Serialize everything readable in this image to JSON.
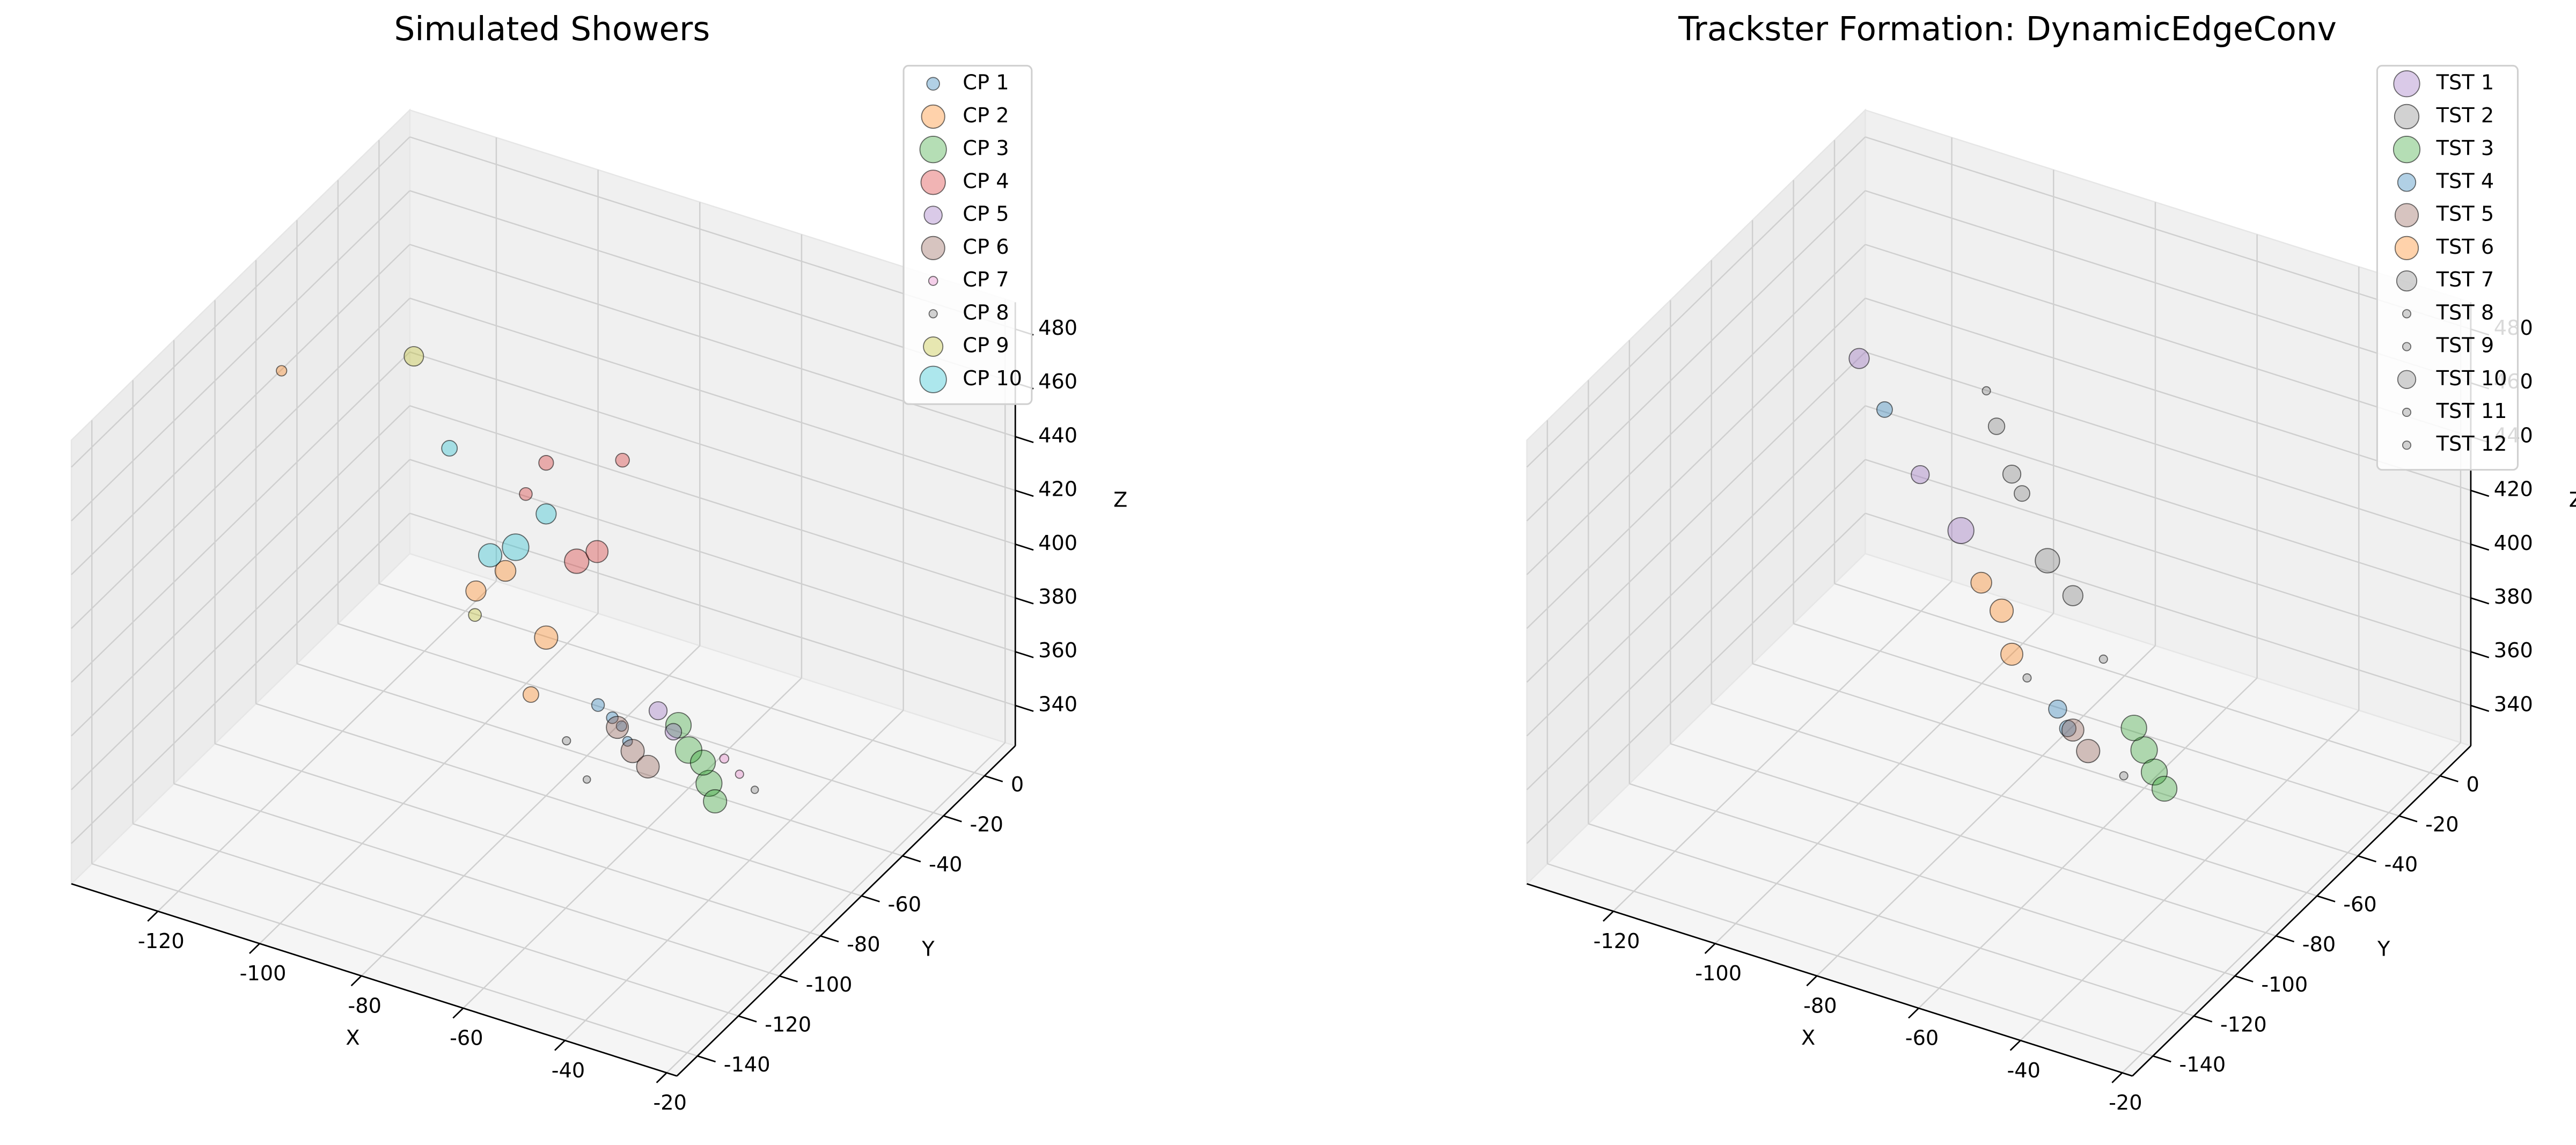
{
  "chart_data": [
    {
      "type": "scatter3d",
      "title": "Simulated Showers",
      "xlabel": "X",
      "ylabel": "Y",
      "zlabel": "Z",
      "xlim": [
        -137,
        -18
      ],
      "ylim": [
        -150,
        15
      ],
      "zlim": [
        325,
        490
      ],
      "xticks": [
        -120,
        -100,
        -80,
        -60,
        -40,
        -20
      ],
      "yticks": [
        0,
        -20,
        -40,
        -60,
        -80,
        -100,
        -120,
        -140
      ],
      "zticks": [
        340,
        360,
        380,
        400,
        420,
        440,
        460,
        480
      ],
      "grid": true,
      "legend": "upper right",
      "alpha": 0.35,
      "series": [
        {
          "name": "CP 1",
          "color": "#1f77b4",
          "x": [
            -71,
            -70,
            -73,
            -68
          ],
          "y": [
            -50,
            -48,
            -52,
            -50
          ],
          "z": [
            352,
            348,
            357,
            345
          ],
          "sizes": [
            50,
            40,
            60,
            35
          ]
        },
        {
          "name": "CP 2",
          "color": "#ff7f0e",
          "x": [
            -84,
            -92,
            -87,
            -136,
            -97
          ],
          "y": [
            -50,
            -50,
            -50,
            -50,
            -52
          ],
          "z": [
            374,
            394,
            351,
            442,
            385
          ],
          "sizes": [
            200,
            160,
            90,
            40,
            150
          ]
        },
        {
          "name": "CP 3",
          "color": "#2ca02c",
          "x": [
            -56,
            -52,
            -58,
            -54,
            -50
          ],
          "y": [
            -50,
            -50,
            -50,
            -48,
            -52
          ],
          "z": [
            349,
            339,
            357,
            344,
            335
          ],
          "sizes": [
            260,
            250,
            240,
            230,
            200
          ]
        },
        {
          "name": "CP 4",
          "color": "#d62728",
          "x": [
            -78,
            -84,
            -69,
            -74,
            -88
          ],
          "y": [
            -50,
            -50,
            -50,
            -50,
            -50
          ],
          "z": [
            406,
            439,
            449,
            412,
            425
          ],
          "sizes": [
            220,
            80,
            70,
            180,
            60
          ]
        },
        {
          "name": "CP 5",
          "color": "#9467bd",
          "x": [
            -62,
            -59
          ],
          "y": [
            -50,
            -50
          ],
          "z": [
            360,
            354
          ],
          "sizes": [
            120,
            100
          ]
        },
        {
          "name": "CP 6",
          "color": "#8c564b",
          "x": [
            -67,
            -70,
            -64
          ],
          "y": [
            -50,
            -50,
            -50
          ],
          "z": [
            342,
            349,
            338
          ],
          "sizes": [
            200,
            180,
            190
          ]
        },
        {
          "name": "CP 7",
          "color": "#e377c2",
          "x": [
            -49,
            -46
          ],
          "y": [
            -50,
            -50
          ],
          "z": [
            350,
            346
          ],
          "sizes": [
            30,
            25
          ]
        },
        {
          "name": "CP 8",
          "color": "#7f7f7f",
          "x": [
            -76,
            -43,
            -80
          ],
          "y": [
            -50,
            -50,
            -50
          ],
          "z": [
            326,
            342,
            338
          ],
          "sizes": [
            20,
            20,
            25
          ]
        },
        {
          "name": "CP 9",
          "color": "#bcbd22",
          "x": [
            -110,
            -98
          ],
          "y": [
            -50,
            -50
          ],
          "z": [
            463,
            374
          ],
          "sizes": [
            140,
            60
          ]
        },
        {
          "name": "CP 10",
          "color": "#17becf",
          "x": [
            -90,
            -84,
            -103,
            -95
          ],
          "y": [
            -50,
            -50,
            -50,
            -50
          ],
          "z": [
            404,
            420,
            433,
            398
          ],
          "sizes": [
            260,
            150,
            90,
            200
          ]
        }
      ]
    },
    {
      "type": "scatter3d",
      "title": "Trackster Formation: DynamicEdgeConv",
      "xlabel": "X",
      "ylabel": "Y",
      "zlabel": "Z",
      "xlim": [
        -137,
        -18
      ],
      "ylim": [
        -150,
        15
      ],
      "zlim": [
        325,
        490
      ],
      "xticks": [
        -120,
        -100,
        -80,
        -60,
        -40,
        -20
      ],
      "yticks": [
        0,
        -20,
        -40,
        -60,
        -80,
        -100,
        -120,
        -140
      ],
      "zticks": [
        340,
        360,
        380,
        400,
        420,
        440,
        460,
        480
      ],
      "grid": true,
      "legend": "upper right",
      "alpha": 0.35,
      "series": [
        {
          "name": "TST 1",
          "color": "#9467bd",
          "x": [
            -112,
            -92,
            -100
          ],
          "y": [
            -50,
            -50,
            -50
          ],
          "z": [
            461,
            409,
            425
          ],
          "sizes": [
            150,
            250,
            120
          ]
        },
        {
          "name": "TST 2",
          "color": "#7f7f7f",
          "x": [
            -75,
            -85,
            -80
          ],
          "y": [
            -50,
            -50,
            -50
          ],
          "z": [
            408,
            452,
            430
          ],
          "sizes": [
            220,
            100,
            90
          ]
        },
        {
          "name": "TST 3",
          "color": "#2ca02c",
          "x": [
            -56,
            -54,
            -52,
            -58
          ],
          "y": [
            -50,
            -50,
            -50,
            -50
          ],
          "z": [
            349,
            342,
            337,
            356
          ],
          "sizes": [
            260,
            250,
            230,
            240
          ]
        },
        {
          "name": "TST 4",
          "color": "#1f77b4",
          "x": [
            -107,
            -73,
            -71
          ],
          "y": [
            -50,
            -50,
            -50
          ],
          "z": [
            445,
            354,
            348
          ],
          "sizes": [
            90,
            120,
            100
          ]
        },
        {
          "name": "TST 5",
          "color": "#8c564b",
          "x": [
            -67,
            -70
          ],
          "y": [
            -50,
            -50
          ],
          "z": [
            342,
            348
          ],
          "sizes": [
            200,
            180
          ]
        },
        {
          "name": "TST 6",
          "color": "#ff7f0e",
          "x": [
            -84,
            -82,
            -88
          ],
          "y": [
            -50,
            -50,
            -50
          ],
          "z": [
            384,
            369,
            392
          ],
          "sizes": [
            200,
            180,
            160
          ]
        },
        {
          "name": "TST 7",
          "color": "#7f7f7f",
          "x": [
            -70
          ],
          "y": [
            -50
          ],
          "z": [
            398
          ],
          "sizes": [
            150
          ]
        },
        {
          "name": "TST 8",
          "color": "#7f7f7f",
          "x": [
            -87
          ],
          "y": [
            -50
          ],
          "z": [
            464
          ],
          "sizes": [
            25
          ]
        },
        {
          "name": "TST 9",
          "color": "#7f7f7f",
          "x": [
            -64
          ],
          "y": [
            -50
          ],
          "z": [
            378
          ],
          "sizes": [
            25
          ]
        },
        {
          "name": "TST 10",
          "color": "#7f7f7f",
          "x": [
            -82
          ],
          "y": [
            -50
          ],
          "z": [
            436
          ],
          "sizes": [
            120
          ]
        },
        {
          "name": "TST 11",
          "color": "#7f7f7f",
          "x": [
            -79
          ],
          "y": [
            -50
          ],
          "z": [
            362
          ],
          "sizes": [
            25
          ]
        },
        {
          "name": "TST 12",
          "color": "#7f7f7f",
          "x": [
            -60
          ],
          "y": [
            -50
          ],
          "z": [
            337
          ],
          "sizes": [
            25
          ]
        }
      ]
    }
  ]
}
